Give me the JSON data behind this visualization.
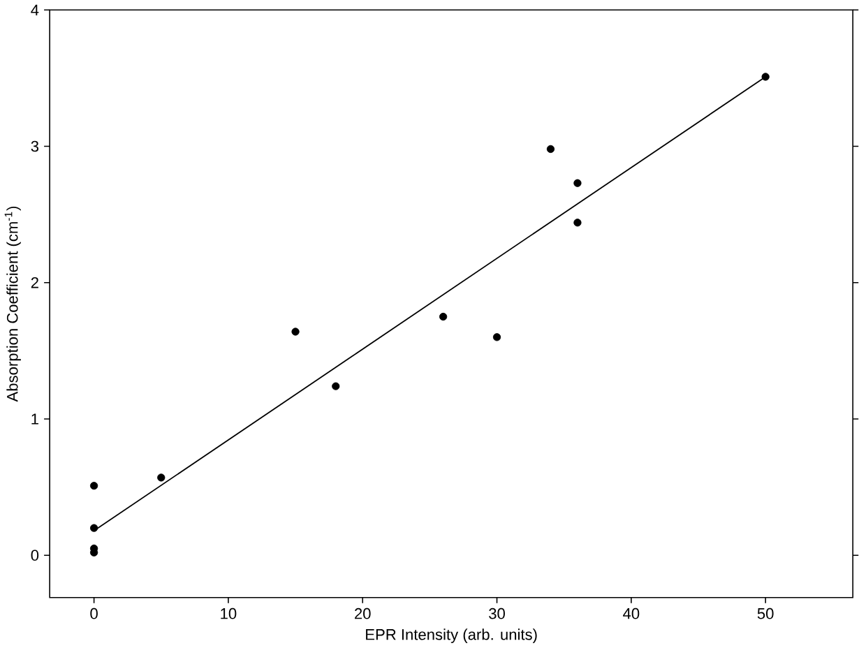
{
  "chart_data": {
    "type": "scatter",
    "xlabel": "EPR Intensity (arb. units)",
    "ylabel": "Absorption Coefficient (cm$^{-1}$)",
    "xlim": [
      -3.3,
      56.5
    ],
    "ylim": [
      -0.31,
      4
    ],
    "xticks": [
      0,
      10,
      20,
      30,
      40,
      50
    ],
    "yticks": [
      0,
      1,
      2,
      3,
      4
    ],
    "grid": false,
    "series": [
      {
        "color": "#000000",
        "marker": "circle",
        "x": [
          0,
          0,
          0,
          0,
          5,
          15,
          18,
          26,
          30,
          34,
          36,
          36,
          50
        ],
        "values": [
          0.51,
          0.2,
          0.05,
          0.02,
          0.57,
          1.64,
          1.24,
          1.75,
          1.6,
          2.98,
          2.73,
          2.44,
          3.51
        ]
      },
      {
        "type": "line",
        "color": "#000000",
        "marker": "none",
        "line_style": "solid",
        "x": [
          0,
          50
        ],
        "values": [
          0.18,
          3.51
        ]
      }
    ]
  }
}
